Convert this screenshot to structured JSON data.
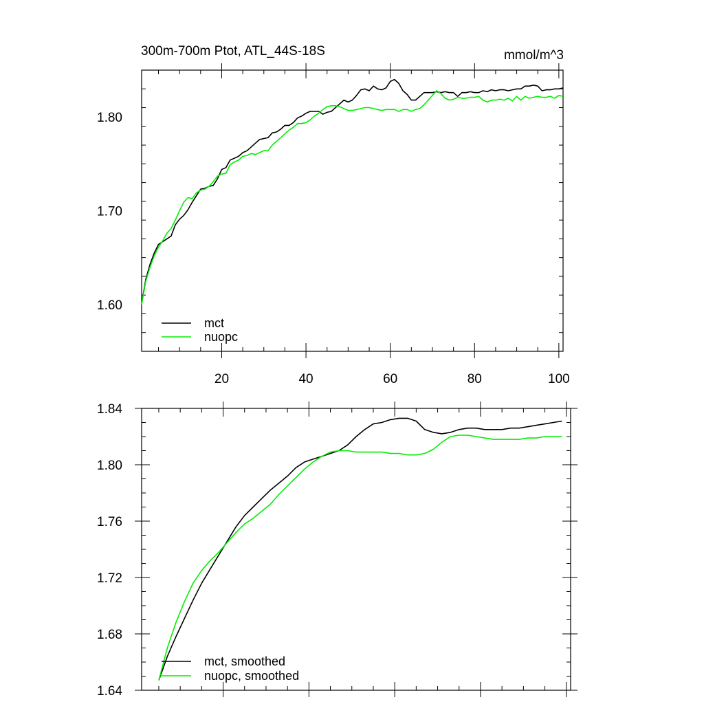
{
  "chart_data": [
    {
      "type": "line",
      "title": "300m-700m Ptot, ATL_44S-18S",
      "units": "mmol/m^3",
      "xlabel": "",
      "ylabel": "",
      "xlim": [
        1,
        101
      ],
      "ylim": [
        1.55,
        1.85
      ],
      "xticks": [
        20,
        40,
        60,
        80,
        100
      ],
      "xtick_labels": [
        "20",
        "40",
        "60",
        "80",
        "100"
      ],
      "yticks": [
        1.6,
        1.7,
        1.8
      ],
      "ytick_labels": [
        "1.60",
        "1.70",
        "1.80"
      ],
      "grid": false,
      "legend_position": "bottom-left",
      "series": [
        {
          "name": "mct",
          "color": "#000000",
          "x": [
            1,
            2,
            3,
            4,
            5,
            6,
            7,
            8,
            9,
            10,
            11,
            12,
            13,
            14,
            15,
            16,
            17,
            18,
            19,
            20,
            21,
            22,
            23,
            24,
            25,
            26,
            27,
            28,
            29,
            30,
            31,
            32,
            33,
            34,
            35,
            36,
            37,
            38,
            39,
            40,
            41,
            42,
            43,
            44,
            45,
            46,
            47,
            48,
            49,
            50,
            51,
            52,
            53,
            54,
            55,
            56,
            57,
            58,
            59,
            60,
            61,
            62,
            63,
            64,
            65,
            66,
            67,
            68,
            69,
            70,
            71,
            72,
            73,
            74,
            75,
            76,
            77,
            78,
            79,
            80,
            81,
            82,
            83,
            84,
            85,
            86,
            87,
            88,
            89,
            90,
            91,
            92,
            93,
            94,
            95,
            96,
            97,
            98,
            99,
            100,
            101
          ],
          "values": [
            1.601,
            1.627,
            1.643,
            1.655,
            1.664,
            1.667,
            1.67,
            1.673,
            1.685,
            1.691,
            1.695,
            1.701,
            1.709,
            1.716,
            1.723,
            1.724,
            1.726,
            1.727,
            1.734,
            1.744,
            1.746,
            1.754,
            1.756,
            1.758,
            1.762,
            1.764,
            1.768,
            1.772,
            1.776,
            1.777,
            1.778,
            1.783,
            1.784,
            1.787,
            1.791,
            1.791,
            1.794,
            1.799,
            1.801,
            1.804,
            1.806,
            1.806,
            1.806,
            1.803,
            1.805,
            1.806,
            1.81,
            1.814,
            1.818,
            1.816,
            1.818,
            1.823,
            1.829,
            1.83,
            1.828,
            1.833,
            1.83,
            1.829,
            1.831,
            1.838,
            1.84,
            1.836,
            1.828,
            1.824,
            1.818,
            1.818,
            1.822,
            1.826,
            1.826,
            1.826,
            1.827,
            1.826,
            1.827,
            1.826,
            1.826,
            1.822,
            1.826,
            1.826,
            1.827,
            1.826,
            1.826,
            1.828,
            1.827,
            1.829,
            1.828,
            1.829,
            1.829,
            1.828,
            1.829,
            1.83,
            1.83,
            1.833,
            1.833,
            1.834,
            1.833,
            1.828,
            1.829,
            1.829,
            1.83,
            1.83,
            1.831
          ]
        },
        {
          "name": "nuopc",
          "color": "#00ee00",
          "x": [
            1,
            2,
            3,
            4,
            5,
            6,
            7,
            8,
            9,
            10,
            11,
            12,
            13,
            14,
            15,
            16,
            17,
            18,
            19,
            20,
            21,
            22,
            23,
            24,
            25,
            26,
            27,
            28,
            29,
            30,
            31,
            32,
            33,
            34,
            35,
            36,
            37,
            38,
            39,
            40,
            41,
            42,
            43,
            44,
            45,
            46,
            47,
            48,
            49,
            50,
            51,
            52,
            53,
            54,
            55,
            56,
            57,
            58,
            59,
            60,
            61,
            62,
            63,
            64,
            65,
            66,
            67,
            68,
            69,
            70,
            71,
            72,
            73,
            74,
            75,
            76,
            77,
            78,
            79,
            80,
            81,
            82,
            83,
            84,
            85,
            86,
            87,
            88,
            89,
            90,
            91,
            92,
            93,
            94,
            95,
            96,
            97,
            98,
            99,
            100,
            101
          ],
          "values": [
            1.6,
            1.625,
            1.64,
            1.652,
            1.661,
            1.668,
            1.676,
            1.681,
            1.69,
            1.7,
            1.709,
            1.714,
            1.713,
            1.719,
            1.722,
            1.723,
            1.726,
            1.731,
            1.737,
            1.739,
            1.74,
            1.749,
            1.752,
            1.754,
            1.758,
            1.759,
            1.761,
            1.76,
            1.762,
            1.764,
            1.764,
            1.77,
            1.774,
            1.778,
            1.782,
            1.786,
            1.789,
            1.793,
            1.793,
            1.794,
            1.797,
            1.801,
            1.804,
            1.808,
            1.811,
            1.812,
            1.812,
            1.811,
            1.809,
            1.807,
            1.807,
            1.808,
            1.809,
            1.81,
            1.81,
            1.809,
            1.808,
            1.807,
            1.808,
            1.808,
            1.808,
            1.806,
            1.808,
            1.808,
            1.806,
            1.808,
            1.809,
            1.813,
            1.818,
            1.823,
            1.828,
            1.825,
            1.82,
            1.818,
            1.819,
            1.821,
            1.82,
            1.82,
            1.821,
            1.821,
            1.822,
            1.818,
            1.816,
            1.818,
            1.818,
            1.819,
            1.818,
            1.82,
            1.817,
            1.822,
            1.818,
            1.822,
            1.82,
            1.821,
            1.822,
            1.821,
            1.821,
            1.822,
            1.82,
            1.823,
            1.822
          ]
        }
      ]
    },
    {
      "type": "line",
      "title": "",
      "xlabel": "",
      "ylabel": "",
      "xlim": [
        1,
        101
      ],
      "ylim": [
        1.64,
        1.84
      ],
      "xticks": [
        20,
        40,
        60,
        80,
        100
      ],
      "yticks": [
        1.64,
        1.68,
        1.72,
        1.76,
        1.8,
        1.84
      ],
      "ytick_labels": [
        "1.64",
        "1.68",
        "1.72",
        "1.76",
        "1.80",
        "1.84"
      ],
      "grid": false,
      "legend_position": "bottom-left",
      "series": [
        {
          "name": "mct, smoothed",
          "color": "#000000",
          "x": [
            5,
            7,
            9,
            11,
            13,
            15,
            17,
            19,
            21,
            23,
            25,
            27,
            29,
            31,
            33,
            35,
            37,
            39,
            41,
            43,
            45,
            47,
            49,
            51,
            53,
            55,
            57,
            59,
            61,
            63,
            65,
            67,
            69,
            71,
            73,
            75,
            77,
            79,
            81,
            83,
            85,
            87,
            89,
            91,
            93,
            95,
            97,
            99
          ],
          "values": [
            1.647,
            1.664,
            1.678,
            1.691,
            1.704,
            1.716,
            1.726,
            1.736,
            1.746,
            1.756,
            1.764,
            1.77,
            1.776,
            1.782,
            1.787,
            1.792,
            1.798,
            1.802,
            1.804,
            1.806,
            1.808,
            1.81,
            1.814,
            1.82,
            1.825,
            1.829,
            1.83,
            1.832,
            1.833,
            1.833,
            1.831,
            1.825,
            1.823,
            1.822,
            1.823,
            1.825,
            1.826,
            1.826,
            1.825,
            1.825,
            1.825,
            1.826,
            1.826,
            1.827,
            1.828,
            1.829,
            1.83,
            1.831
          ]
        },
        {
          "name": "nuopc, smoothed",
          "color": "#00ee00",
          "x": [
            5,
            7,
            9,
            11,
            13,
            15,
            17,
            19,
            21,
            23,
            25,
            27,
            29,
            31,
            33,
            35,
            37,
            39,
            41,
            43,
            45,
            47,
            49,
            51,
            53,
            55,
            57,
            59,
            61,
            63,
            65,
            67,
            69,
            71,
            73,
            75,
            77,
            79,
            81,
            83,
            85,
            87,
            89,
            91,
            93,
            95,
            97,
            99
          ],
          "values": [
            1.647,
            1.67,
            1.688,
            1.703,
            1.716,
            1.725,
            1.732,
            1.738,
            1.745,
            1.752,
            1.758,
            1.762,
            1.767,
            1.772,
            1.779,
            1.785,
            1.791,
            1.797,
            1.802,
            1.806,
            1.809,
            1.81,
            1.81,
            1.809,
            1.809,
            1.809,
            1.809,
            1.808,
            1.808,
            1.807,
            1.807,
            1.808,
            1.811,
            1.816,
            1.82,
            1.821,
            1.821,
            1.82,
            1.819,
            1.818,
            1.818,
            1.818,
            1.818,
            1.819,
            1.819,
            1.82,
            1.82,
            1.82
          ]
        }
      ]
    }
  ],
  "legends": [
    {
      "items": [
        "mct",
        "nuopc"
      ]
    },
    {
      "items": [
        "mct, smoothed",
        "nuopc, smoothed"
      ]
    }
  ]
}
